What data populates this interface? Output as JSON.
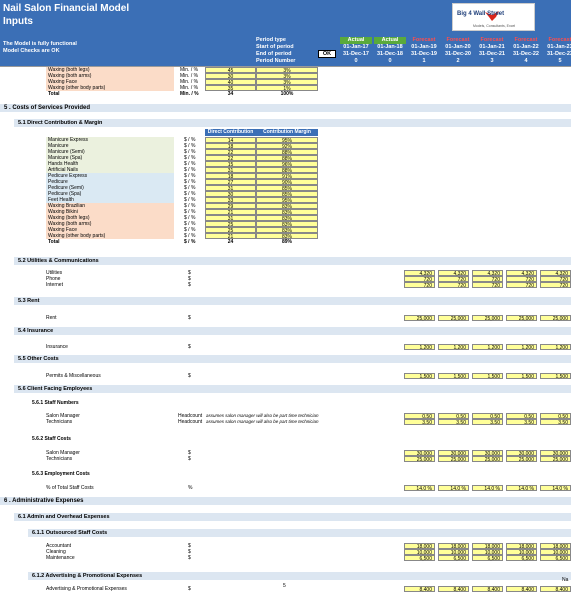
{
  "app_title": "Nail Salon Financial Model",
  "sheet_title": "Inputs",
  "status": {
    "line1": "The Model is fully functional",
    "line2": "Model Checks are OK",
    "ok_label": "OK"
  },
  "logo": {
    "name": "Big 4 Wall Street",
    "tagline": "Models, Consultants, Excel"
  },
  "header_labels": {
    "period_type": "Period type",
    "start": "Start of period",
    "end": "End of period",
    "number": "Period Number"
  },
  "periods": [
    {
      "type": "Actual",
      "start": "01-Jan-17",
      "end": "31-Dec-17",
      "num": "0"
    },
    {
      "type": "Actual",
      "start": "01-Jan-18",
      "end": "31-Dec-18",
      "num": "0"
    },
    {
      "type": "Forecast",
      "start": "01-Jan-19",
      "end": "31-Dec-19",
      "num": "1"
    },
    {
      "type": "Forecast",
      "start": "01-Jan-20",
      "end": "31-Dec-20",
      "num": "2"
    },
    {
      "type": "Forecast",
      "start": "01-Jan-21",
      "end": "31-Dec-21",
      "num": "3"
    },
    {
      "type": "Forecast",
      "start": "01-Jan-22",
      "end": "31-Dec-22",
      "num": "4"
    },
    {
      "type": "Forecast",
      "start": "01-Jan-23",
      "end": "31-Dec-23",
      "num": "5"
    }
  ],
  "top_rows": [
    {
      "label": "Waxing (both legs)",
      "unit": "Min. / %",
      "v": "45",
      "p": "3%"
    },
    {
      "label": "Waxing (both arms)",
      "unit": "Min. / %",
      "v": "30",
      "p": "3%"
    },
    {
      "label": "Waxing Face",
      "unit": "Min. / %",
      "v": "40",
      "p": "3%"
    },
    {
      "label": "Waxing (other body parts)",
      "unit": "Min. / %",
      "v": "35",
      "p": "1%"
    },
    {
      "label": "Total",
      "unit": "Min. / %",
      "v": "34",
      "p": "100%"
    }
  ],
  "sections": {
    "s5": "5 . Costs of Services Provided",
    "s51": "5.1  Direct Contribution & Margin",
    "s52": "5.2  Utilities & Communications",
    "s53": "5.3  Rent",
    "s54": "5.4  Insurance",
    "s55": "5.5  Other Costs",
    "s56": "5.6  Client Facing Employees",
    "s561": "5.6.1  Staff Numbers",
    "s562": "5.6.2  Staff Costs",
    "s563": "5.6.3  Employment Costs",
    "s6": "6 . Administrative Expenses",
    "s61": "6.1  Admin and Overhead Expenses",
    "s611": "6.1.1  Outsourced Staff Costs",
    "s612": "6.1.2  Advertising & Promotional Expenses"
  },
  "contrib_headers": {
    "dc": "Direct Contribution",
    "cm": "Contribution Margin"
  },
  "contrib_rows": [
    {
      "label": "Manicure Express",
      "unit": "$ / %",
      "dc": "14",
      "cm": "95%",
      "c": "green"
    },
    {
      "label": "Manicure",
      "unit": "$ / %",
      "dc": "18",
      "cm": "92%",
      "c": "green"
    },
    {
      "label": "Manicure (Semi)",
      "unit": "$ / %",
      "dc": "22",
      "cm": "88%",
      "c": "green"
    },
    {
      "label": "Manicure (Spa)",
      "unit": "$ / %",
      "dc": "22",
      "cm": "88%",
      "c": "green"
    },
    {
      "label": "Hands Health",
      "unit": "$ / %",
      "dc": "15",
      "cm": "96%",
      "c": "green"
    },
    {
      "label": "Artificial Nails",
      "unit": "$ / %",
      "dc": "31",
      "cm": "88%",
      "c": "green"
    },
    {
      "label": "Pedicure Express",
      "unit": "$ / %",
      "dc": "18",
      "cm": "91%",
      "c": "blue"
    },
    {
      "label": "Pedicure",
      "unit": "$ / %",
      "dc": "27",
      "cm": "90%",
      "c": "blue"
    },
    {
      "label": "Pedicure (Semi)",
      "unit": "$ / %",
      "dc": "31",
      "cm": "85%",
      "c": "blue"
    },
    {
      "label": "Pedicure (Spa)",
      "unit": "$ / %",
      "dc": "30",
      "cm": "85%",
      "c": "blue"
    },
    {
      "label": "Feet Health",
      "unit": "$ / %",
      "dc": "33",
      "cm": "95%",
      "c": "blue"
    },
    {
      "label": "Waxing Brazilian",
      "unit": "$ / %",
      "dc": "29",
      "cm": "83%",
      "c": "peach"
    },
    {
      "label": "Waxing Bikini",
      "unit": "$ / %",
      "dc": "21",
      "cm": "83%",
      "c": "peach"
    },
    {
      "label": "Waxing (both legs)",
      "unit": "$ / %",
      "dc": "31",
      "cm": "83%",
      "c": "peach"
    },
    {
      "label": "Waxing (both arms)",
      "unit": "$ / %",
      "dc": "25",
      "cm": "83%",
      "c": "peach"
    },
    {
      "label": "Waxing Face",
      "unit": "$ / %",
      "dc": "25",
      "cm": "83%",
      "c": "peach"
    },
    {
      "label": "Waxing (other body parts)",
      "unit": "$ / %",
      "dc": "21",
      "cm": "83%",
      "c": "peach"
    },
    {
      "label": "Total",
      "unit": "$ / %",
      "dc": "24",
      "cm": "89%",
      "c": "none"
    }
  ],
  "forecast_rows": {
    "utilities": [
      {
        "label": "Utilities",
        "unit": "$",
        "vals": [
          "4,320",
          "4,320",
          "4,320",
          "4,320",
          "4,320"
        ]
      },
      {
        "label": "Phone",
        "unit": "$",
        "vals": [
          "720",
          "720",
          "720",
          "720",
          "720"
        ]
      },
      {
        "label": "Internet",
        "unit": "$",
        "vals": [
          "720",
          "720",
          "720",
          "720",
          "720"
        ]
      }
    ],
    "rent": [
      {
        "label": "Rent",
        "unit": "$",
        "vals": [
          "25,000",
          "25,000",
          "25,000",
          "25,000",
          "25,000"
        ]
      }
    ],
    "insurance": [
      {
        "label": "Insurance",
        "unit": "$",
        "vals": [
          "1,200",
          "1,200",
          "1,200",
          "1,200",
          "1,200"
        ]
      }
    ],
    "other": [
      {
        "label": "Permits & Miscellaneous",
        "unit": "$",
        "vals": [
          "1,500",
          "1,500",
          "1,500",
          "1,500",
          "1,500"
        ]
      }
    ],
    "staff_numbers": [
      {
        "label": "Salon Manager",
        "unit": "Headcount",
        "note": "assumes salon manager will also be part time technician",
        "vals": [
          "0.50",
          "0.50",
          "0.50",
          "0.50",
          "0.50"
        ]
      },
      {
        "label": "Technicians",
        "unit": "Headcount",
        "note": "assumes salon manager will also be part time technician",
        "vals": [
          "3.50",
          "3.50",
          "3.50",
          "3.50",
          "3.50"
        ]
      }
    ],
    "staff_costs": [
      {
        "label": "Salon Manager",
        "unit": "$",
        "vals": [
          "30,000",
          "30,000",
          "30,000",
          "30,000",
          "30,000"
        ]
      },
      {
        "label": "Technicians",
        "unit": "$",
        "vals": [
          "25,000",
          "25,000",
          "25,000",
          "25,000",
          "25,000"
        ]
      }
    ],
    "employment": [
      {
        "label": "% of Total Staff Costs",
        "unit": "%",
        "vals": [
          "14.0 %",
          "14.0 %",
          "14.0 %",
          "14.0 %",
          "14.0 %"
        ]
      }
    ],
    "outsourced": [
      {
        "label": "Accountant",
        "unit": "$",
        "vals": [
          "18,000",
          "18,000",
          "18,000",
          "18,000",
          "18,000"
        ]
      },
      {
        "label": "Cleaning",
        "unit": "$",
        "vals": [
          "10,000",
          "10,000",
          "10,000",
          "10,000",
          "10,000"
        ]
      },
      {
        "label": "Maintenance",
        "unit": "$",
        "vals": [
          "6,500",
          "6,500",
          "6,500",
          "6,500",
          "6,500"
        ]
      }
    ],
    "advertising": [
      {
        "label": "Advertising & Promotional Expenses",
        "unit": "$",
        "vals": [
          "8,400",
          "8,400",
          "8,400",
          "8,400",
          "8,400"
        ]
      }
    ]
  },
  "footer": {
    "page_number": "5",
    "na": "Na"
  },
  "colors": {
    "banner": "#3b6fb6",
    "actual": "#5aaa3c",
    "forecast_text": "#ff4d4d",
    "input": "#ffff99"
  }
}
